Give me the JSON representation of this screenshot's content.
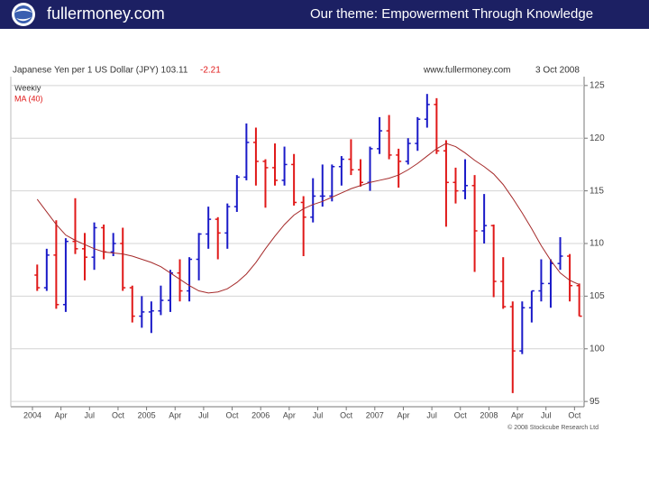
{
  "header": {
    "site": "fullermoney.com",
    "theme": "Our theme: Empowerment Through Knowledge"
  },
  "chart_data": {
    "type": "ohlc",
    "title": "Japanese Yen per 1 US Dollar (JPY) 103.11",
    "change": "-2.21",
    "source": "www.fullermoney.com",
    "date": "3 Oct 2008",
    "copyright": "© 2008 Stockcube Research Ltd",
    "x": [
      "2004-01",
      "2004-02",
      "2004-03",
      "2004-04",
      "2004-05",
      "2004-06",
      "2004-07",
      "2004-08",
      "2004-09",
      "2004-10",
      "2004-11",
      "2004-12",
      "2005-01",
      "2005-02",
      "2005-03",
      "2005-04",
      "2005-05",
      "2005-06",
      "2005-07",
      "2005-08",
      "2005-09",
      "2005-10",
      "2005-11",
      "2005-12",
      "2006-01",
      "2006-02",
      "2006-03",
      "2006-04",
      "2006-05",
      "2006-06",
      "2006-07",
      "2006-08",
      "2006-09",
      "2006-10",
      "2006-11",
      "2006-12",
      "2007-01",
      "2007-02",
      "2007-03",
      "2007-04",
      "2007-05",
      "2007-06",
      "2007-07",
      "2007-08",
      "2007-09",
      "2007-10",
      "2007-11",
      "2007-12",
      "2008-01",
      "2008-02",
      "2008-03",
      "2008-04",
      "2008-05",
      "2008-06",
      "2008-07",
      "2008-08",
      "2008-09",
      "2008-10"
    ],
    "series": [
      {
        "name": "Weekly",
        "up_color": "#1a1ac8",
        "down_color": "#e01818",
        "open": [
          107,
          105.8,
          108.9,
          104.2,
          110.2,
          109.5,
          108.7,
          111.5,
          109.2,
          110,
          105.8,
          103.1,
          103.5,
          103.6,
          104.6,
          107.2,
          105.5,
          108.5,
          110.9,
          112.3,
          111,
          113.5,
          116.3,
          119.6,
          117.8,
          117.2,
          116,
          117.5,
          113.9,
          112.5,
          114.5,
          114.5,
          117.3,
          118,
          117,
          115.8,
          119,
          120.7,
          118.4,
          117.8,
          119.5,
          121.8,
          123.2,
          118.8,
          115.8,
          115,
          115.5,
          111.2,
          111.7,
          106.4,
          104,
          99.8,
          103.9,
          105.5,
          106.2,
          108.1,
          108.8,
          106
        ],
        "high": [
          108,
          109.5,
          112.2,
          110.5,
          114.3,
          111,
          112,
          111.8,
          111,
          111.5,
          106,
          105,
          104.5,
          106,
          107.5,
          108.5,
          108.7,
          111,
          113.5,
          112.5,
          113.8,
          116.5,
          121.4,
          121,
          118,
          119.5,
          119.2,
          118.5,
          114.5,
          116.2,
          117.5,
          117.5,
          118.3,
          119.9,
          118,
          119.2,
          122,
          122.2,
          119,
          120,
          122,
          124.2,
          123.8,
          119.8,
          117.2,
          118,
          116.5,
          114.7,
          111.8,
          108.7,
          104.5,
          104.5,
          105.5,
          108.5,
          108.5,
          110.6,
          109,
          106.2
        ],
        "low": [
          105.5,
          105.5,
          103.8,
          103.5,
          109,
          106.5,
          107.5,
          108.5,
          108.8,
          105.5,
          102.5,
          102,
          101.5,
          103.2,
          103.5,
          104.5,
          104.5,
          106.5,
          109.5,
          108.5,
          109.5,
          113,
          116,
          115.5,
          113.4,
          115.5,
          115.5,
          113.6,
          108.8,
          112,
          113.5,
          114,
          115.5,
          116.5,
          115.4,
          115,
          118.5,
          118,
          115.3,
          117.5,
          118.8,
          121,
          118.5,
          111.6,
          113.8,
          114.2,
          107.3,
          110,
          104.9,
          103.8,
          95.8,
          99.5,
          102.5,
          104.5,
          103.9,
          107.5,
          104.5,
          103.1
        ],
        "close": [
          105.8,
          108.9,
          104.2,
          110.2,
          109.5,
          108.7,
          111.5,
          109.2,
          110,
          105.8,
          103.1,
          103.5,
          103.6,
          104.6,
          107.2,
          105.5,
          108.5,
          110.9,
          112.3,
          111,
          113.5,
          116.3,
          119.6,
          117.8,
          117.2,
          116,
          117.5,
          113.9,
          112.5,
          114.5,
          114.5,
          117.3,
          118,
          117,
          115.8,
          119,
          120.7,
          118.4,
          117.8,
          119.5,
          121.8,
          123.2,
          118.8,
          115.8,
          115,
          115.5,
          111.2,
          111.7,
          106.4,
          104,
          99.8,
          103.9,
          105.5,
          106.2,
          108.1,
          108.8,
          106,
          103.1
        ]
      },
      {
        "name": "MA (40)",
        "color": "#a52a2a",
        "values": [
          114.2,
          113,
          111.8,
          110.8,
          110.3,
          109.9,
          109.5,
          109.2,
          109.1,
          109,
          108.8,
          108.5,
          108.2,
          107.8,
          107.2,
          106.6,
          106,
          105.5,
          105.3,
          105.4,
          105.7,
          106.3,
          107.1,
          108.2,
          109.5,
          110.7,
          111.8,
          112.7,
          113.3,
          113.7,
          114,
          114.4,
          114.8,
          115.2,
          115.5,
          115.8,
          116,
          116.2,
          116.5,
          117,
          117.6,
          118.3,
          119,
          119.5,
          119.2,
          118.6,
          117.9,
          117.3,
          116.6,
          115.6,
          114.3,
          112.9,
          111.4,
          109.8,
          108.4,
          107.2,
          106.5,
          106.1
        ]
      }
    ],
    "ylim": [
      94.5,
      125.5
    ],
    "yticks": [
      95,
      100,
      105,
      110,
      115,
      120,
      125
    ],
    "xticks": [
      {
        "value": "2004-01",
        "label": "2004"
      },
      {
        "value": "2004-04",
        "label": "Apr"
      },
      {
        "value": "2004-07",
        "label": "Jul"
      },
      {
        "value": "2004-10",
        "label": "Oct"
      },
      {
        "value": "2005-01",
        "label": "2005"
      },
      {
        "value": "2005-04",
        "label": "Apr"
      },
      {
        "value": "2005-07",
        "label": "Jul"
      },
      {
        "value": "2005-10",
        "label": "Oct"
      },
      {
        "value": "2006-01",
        "label": "2006"
      },
      {
        "value": "2006-04",
        "label": "Apr"
      },
      {
        "value": "2006-07",
        "label": "Jul"
      },
      {
        "value": "2006-10",
        "label": "Oct"
      },
      {
        "value": "2007-01",
        "label": "2007"
      },
      {
        "value": "2007-04",
        "label": "Apr"
      },
      {
        "value": "2007-07",
        "label": "Jul"
      },
      {
        "value": "2007-10",
        "label": "Oct"
      },
      {
        "value": "2008-01",
        "label": "2008"
      },
      {
        "value": "2008-04",
        "label": "Apr"
      },
      {
        "value": "2008-07",
        "label": "Jul"
      },
      {
        "value": "2008-10",
        "label": "Oct"
      }
    ],
    "grid": true
  }
}
